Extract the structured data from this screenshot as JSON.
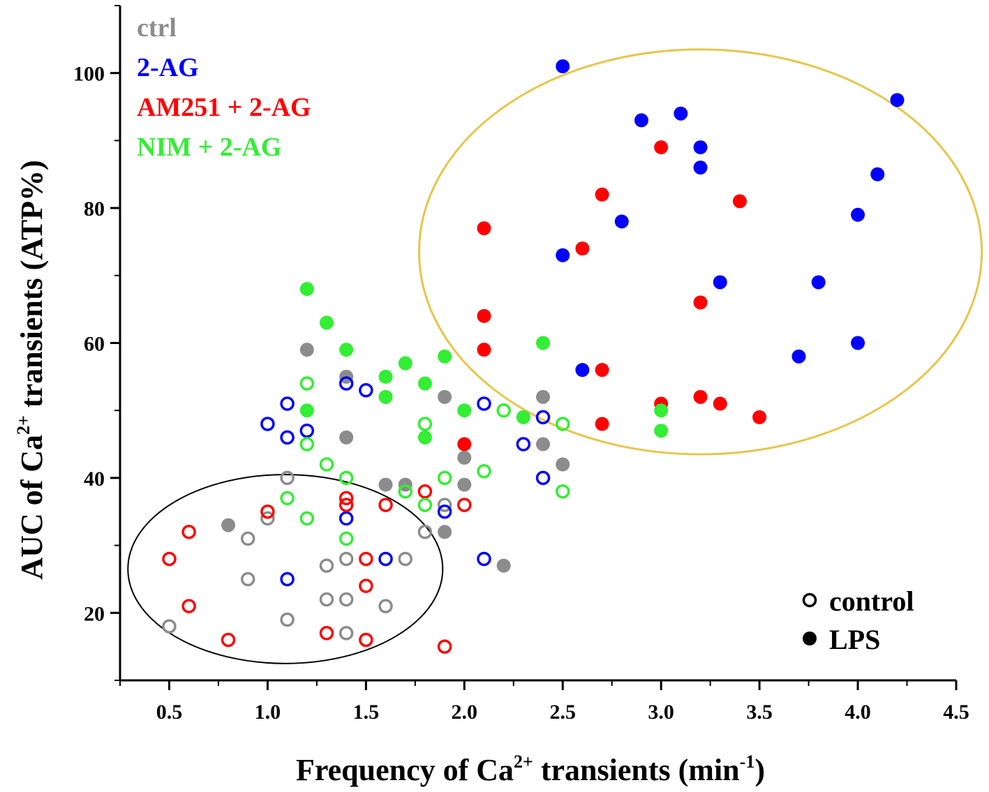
{
  "chart_data": {
    "type": "scatter",
    "xlabel": {
      "prefix": "Frequency of Ca",
      "sup": "2+",
      "middle": " transients (min",
      "sup2": "-1",
      "suffix": ")"
    },
    "ylabel": {
      "prefix": "AUC of Ca",
      "sup": "2+",
      "suffix": " transients (ATP%)"
    },
    "xlim": [
      0.25,
      4.5
    ],
    "ylim": [
      10,
      110
    ],
    "xticks": [
      "0.5",
      "1.0",
      "1.5",
      "2.0",
      "2.5",
      "3.0",
      "3.5",
      "4.0",
      "4.5"
    ],
    "yticks": [
      "20",
      "40",
      "60",
      "80",
      "100"
    ],
    "groups": [
      {
        "name": "ctrl",
        "color": "#8c8c8c"
      },
      {
        "name": "2-AG",
        "color": "#0000ff"
      },
      {
        "name": "AM251 + 2-AG",
        "color": "#ff0000"
      },
      {
        "name": "NIM + 2-AG",
        "color": "#33ee33"
      }
    ],
    "marker_legend": [
      {
        "label": "control",
        "style": "open"
      },
      {
        "label": "LPS",
        "style": "filled"
      }
    ],
    "series": [
      {
        "name": "ctrl",
        "condition": "control",
        "points": [
          [
            0.5,
            18
          ],
          [
            0.9,
            25
          ],
          [
            0.9,
            31
          ],
          [
            1.0,
            34
          ],
          [
            1.1,
            19
          ],
          [
            1.1,
            40
          ],
          [
            1.3,
            22
          ],
          [
            1.3,
            27
          ],
          [
            1.4,
            17
          ],
          [
            1.4,
            22
          ],
          [
            1.4,
            28
          ],
          [
            1.6,
            21
          ],
          [
            1.7,
            28
          ],
          [
            1.8,
            32
          ],
          [
            1.9,
            36
          ]
        ]
      },
      {
        "name": "ctrl",
        "condition": "LPS",
        "points": [
          [
            0.8,
            33
          ],
          [
            1.2,
            59
          ],
          [
            1.4,
            55
          ],
          [
            1.4,
            46
          ],
          [
            1.6,
            39
          ],
          [
            1.7,
            39
          ],
          [
            1.9,
            52
          ],
          [
            1.9,
            32
          ],
          [
            2.0,
            43
          ],
          [
            2.0,
            39
          ],
          [
            2.2,
            27
          ],
          [
            2.4,
            52
          ],
          [
            2.4,
            45
          ],
          [
            2.5,
            42
          ]
        ]
      },
      {
        "name": "2-AG",
        "condition": "control",
        "points": [
          [
            1.0,
            48
          ],
          [
            1.1,
            51
          ],
          [
            1.1,
            46
          ],
          [
            1.2,
            47
          ],
          [
            1.1,
            25
          ],
          [
            1.4,
            54
          ],
          [
            1.5,
            53
          ],
          [
            1.4,
            34
          ],
          [
            1.6,
            28
          ],
          [
            1.9,
            35
          ],
          [
            2.1,
            51
          ],
          [
            2.1,
            28
          ],
          [
            2.3,
            45
          ],
          [
            2.4,
            49
          ],
          [
            2.4,
            40
          ]
        ]
      },
      {
        "name": "2-AG",
        "condition": "LPS",
        "points": [
          [
            2.5,
            101
          ],
          [
            2.9,
            93
          ],
          [
            3.1,
            94
          ],
          [
            3.2,
            89
          ],
          [
            3.2,
            86
          ],
          [
            2.8,
            78
          ],
          [
            2.5,
            73
          ],
          [
            3.3,
            69
          ],
          [
            2.6,
            56
          ],
          [
            3.7,
            58
          ],
          [
            3.8,
            69
          ],
          [
            4.0,
            79
          ],
          [
            4.0,
            60
          ],
          [
            4.1,
            85
          ],
          [
            4.2,
            96
          ]
        ]
      },
      {
        "name": "AM251 + 2-AG",
        "condition": "control",
        "points": [
          [
            0.5,
            28
          ],
          [
            0.6,
            32
          ],
          [
            0.6,
            21
          ],
          [
            0.8,
            16
          ],
          [
            1.0,
            35
          ],
          [
            1.3,
            17
          ],
          [
            1.4,
            37
          ],
          [
            1.4,
            36
          ],
          [
            1.5,
            28
          ],
          [
            1.5,
            24
          ],
          [
            1.5,
            16
          ],
          [
            1.6,
            36
          ],
          [
            1.8,
            38
          ],
          [
            1.9,
            15
          ],
          [
            2.0,
            36
          ]
        ]
      },
      {
        "name": "AM251 + 2-AG",
        "condition": "LPS",
        "points": [
          [
            2.0,
            45
          ],
          [
            2.1,
            77
          ],
          [
            2.1,
            64
          ],
          [
            2.1,
            59
          ],
          [
            2.6,
            74
          ],
          [
            2.7,
            82
          ],
          [
            2.7,
            56
          ],
          [
            2.7,
            48
          ],
          [
            3.0,
            89
          ],
          [
            3.0,
            51
          ],
          [
            3.2,
            66
          ],
          [
            3.2,
            52
          ],
          [
            3.3,
            51
          ],
          [
            3.4,
            81
          ],
          [
            3.5,
            49
          ]
        ]
      },
      {
        "name": "NIM + 2-AG",
        "condition": "control",
        "points": [
          [
            1.1,
            37
          ],
          [
            1.2,
            54
          ],
          [
            1.2,
            45
          ],
          [
            1.2,
            34
          ],
          [
            1.3,
            42
          ],
          [
            1.4,
            40
          ],
          [
            1.4,
            31
          ],
          [
            1.7,
            38
          ],
          [
            1.8,
            48
          ],
          [
            1.8,
            36
          ],
          [
            1.9,
            40
          ],
          [
            2.1,
            41
          ],
          [
            2.2,
            50
          ],
          [
            2.5,
            48
          ],
          [
            2.5,
            38
          ]
        ]
      },
      {
        "name": "NIM + 2-AG",
        "condition": "LPS",
        "points": [
          [
            1.2,
            68
          ],
          [
            1.2,
            50
          ],
          [
            1.3,
            63
          ],
          [
            1.4,
            59
          ],
          [
            1.6,
            55
          ],
          [
            1.6,
            52
          ],
          [
            1.7,
            57
          ],
          [
            1.8,
            54
          ],
          [
            1.8,
            46
          ],
          [
            1.9,
            58
          ],
          [
            2.0,
            50
          ],
          [
            2.3,
            49
          ],
          [
            2.4,
            60
          ],
          [
            3.0,
            50
          ],
          [
            3.0,
            47
          ]
        ]
      }
    ],
    "annotations": [
      {
        "shape": "ellipse",
        "color": "#e8c54a",
        "center": [
          3.2,
          73.5
        ],
        "radii_x": 1.43,
        "radii_y": 30
      },
      {
        "shape": "ellipse",
        "color": "#000000",
        "center": [
          1.09,
          26.5
        ],
        "radii_x": 0.8,
        "radii_y": 14
      }
    ]
  }
}
